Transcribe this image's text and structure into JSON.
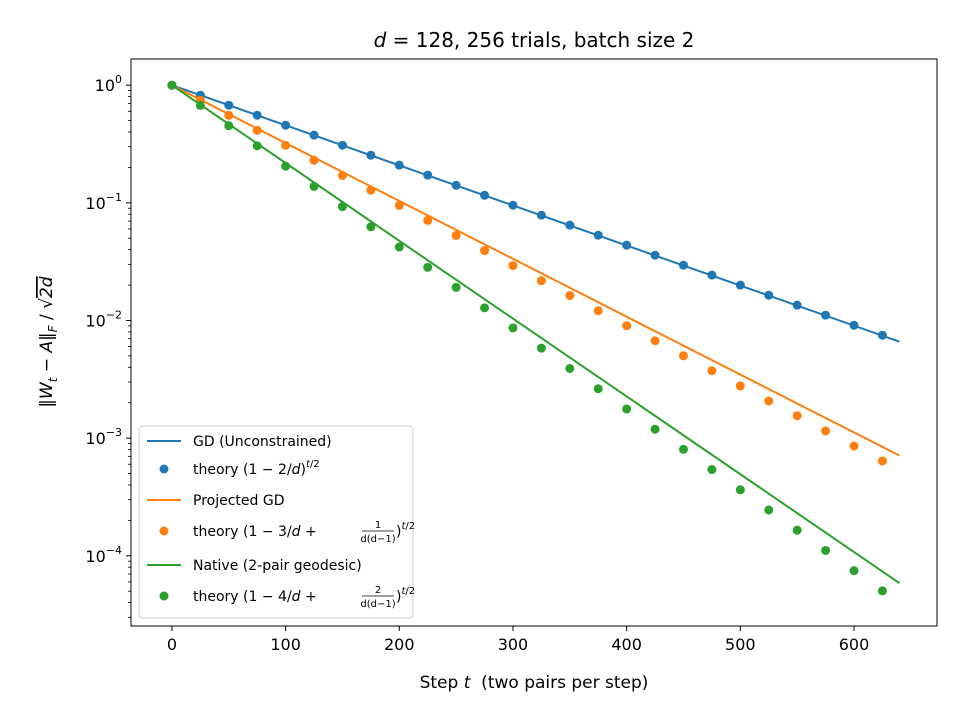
{
  "chart_data": {
    "type": "line",
    "title": "d = 128, 256 trials, batch size 2",
    "xlabel": "Step t  (two pairs per step)",
    "ylabel": "‖W_t − A‖_F / √(2d)",
    "xlim": [
      -36,
      673
    ],
    "ylim": [
      2.53e-05,
      1.67
    ],
    "yscale": "log",
    "x_ticks": [
      0,
      100,
      200,
      300,
      400,
      500,
      600
    ],
    "y_ticks": [
      {
        "value": 1,
        "base": "10",
        "exp": "0"
      },
      {
        "value": 0.1,
        "base": "10",
        "exp": "−1"
      },
      {
        "value": 0.01,
        "base": "10",
        "exp": "−2"
      },
      {
        "value": 0.001,
        "base": "10",
        "exp": "−3"
      },
      {
        "value": 0.0001,
        "base": "10",
        "exp": "−4"
      }
    ],
    "grid": false,
    "legend_position": "lower-left",
    "series": [
      {
        "name": "GD (Unconstrained)",
        "kind": "line",
        "color": "#1f77b4",
        "x": [
          0,
          640
        ],
        "y": [
          1.0,
          0.0066
        ]
      },
      {
        "name": "theory (1 − 2/d)^{t/2}",
        "kind": "scatter",
        "color": "#1f77b4",
        "x": [
          0,
          25,
          50,
          75,
          100,
          125,
          150,
          175,
          200,
          225,
          250,
          275,
          300,
          325,
          350,
          375,
          400,
          425,
          450,
          475,
          500,
          525,
          550,
          575,
          600,
          625
        ],
        "y": [
          1.0,
          0.822,
          0.676,
          0.556,
          0.457,
          0.376,
          0.309,
          0.254,
          0.209,
          0.172,
          0.141,
          0.116,
          0.0955,
          0.0785,
          0.0646,
          0.0531,
          0.0437,
          0.0359,
          0.0295,
          0.0243,
          0.02,
          0.0164,
          0.0135,
          0.0111,
          0.0091,
          0.0075
        ]
      },
      {
        "name": "Projected GD",
        "kind": "line",
        "color": "#ff7f0e",
        "x": [
          0,
          640
        ],
        "y": [
          1.0,
          0.00071
        ]
      },
      {
        "name": "theory (1 − 3/d + 1/(d(d−1)))^{t/2}",
        "kind": "scatter",
        "color": "#ff7f0e",
        "x": [
          0,
          25,
          50,
          75,
          100,
          125,
          150,
          175,
          200,
          225,
          250,
          275,
          300,
          325,
          350,
          375,
          400,
          425,
          450,
          475,
          500,
          525,
          550,
          575,
          600,
          625
        ],
        "y": [
          1.0,
          0.745,
          0.555,
          0.414,
          0.308,
          0.23,
          0.171,
          0.128,
          0.0951,
          0.0709,
          0.0528,
          0.0393,
          0.0293,
          0.0218,
          0.0163,
          0.0121,
          0.00903,
          0.00673,
          0.00501,
          0.00374,
          0.00278,
          0.00207,
          0.00155,
          0.00115,
          0.000858,
          0.00064
        ]
      },
      {
        "name": "Native (2-pair geodesic)",
        "kind": "line",
        "color": "#2ca02c",
        "x": [
          0,
          640
        ],
        "y": [
          1.0,
          5.85e-05
        ]
      },
      {
        "name": "theory (1 − 4/d + 2/(d(d−1)))^{t/2}",
        "kind": "scatter",
        "color": "#2ca02c",
        "x": [
          0,
          25,
          50,
          75,
          100,
          125,
          150,
          175,
          200,
          225,
          250,
          275,
          300,
          325,
          350,
          375,
          400,
          425,
          450,
          475,
          500,
          525,
          550,
          575,
          600,
          625
        ],
        "y": [
          1.0,
          0.673,
          0.453,
          0.305,
          0.205,
          0.138,
          0.0929,
          0.0625,
          0.0421,
          0.0283,
          0.0191,
          0.0128,
          0.00864,
          0.00582,
          0.00391,
          0.00263,
          0.00177,
          0.00119,
          0.000804,
          0.000541,
          0.000364,
          0.000245,
          0.000165,
          0.000111,
          7.47e-05,
          5.03e-05
        ]
      }
    ]
  }
}
